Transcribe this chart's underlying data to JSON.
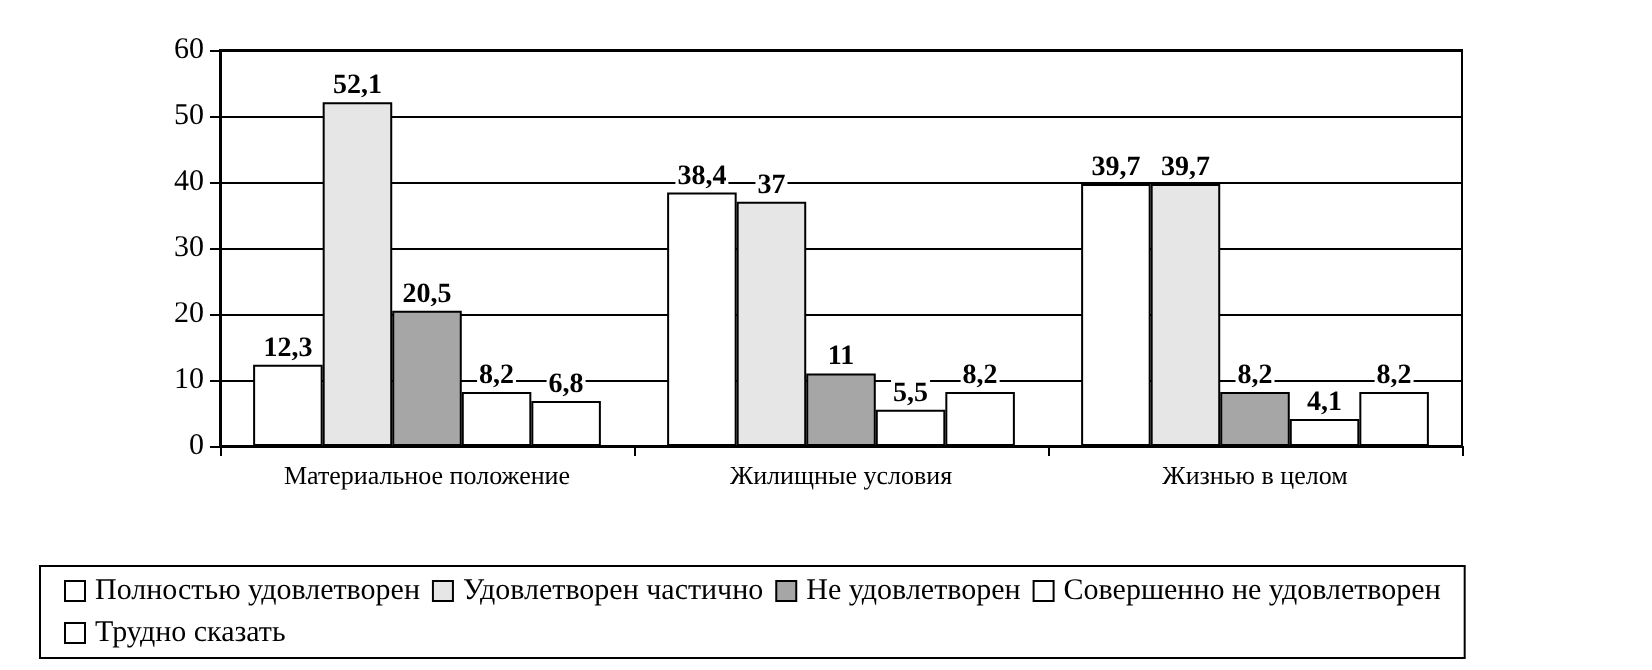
{
  "chart_data": {
    "type": "bar",
    "categories": [
      "Материальное положение",
      "Жилищные условия",
      "Жизнью в целом"
    ],
    "series": [
      {
        "name": "Полностью удовлетворен",
        "color": "#ffffff",
        "values": [
          12.3,
          38.4,
          39.7
        ],
        "value_labels": [
          "12,3",
          "38,4",
          "39,7"
        ]
      },
      {
        "name": "Удовлетворен частично",
        "color": "#e6e6e6",
        "values": [
          52.1,
          37,
          39.7
        ],
        "value_labels": [
          "52,1",
          "37",
          "39,7"
        ]
      },
      {
        "name": "Не удовлетворен",
        "color": "#a6a6a6",
        "values": [
          20.5,
          11,
          8.2
        ],
        "value_labels": [
          "20,5",
          "11",
          "8,2"
        ]
      },
      {
        "name": "Совершенно не удовлетворен",
        "color": "#ffffff",
        "values": [
          8.2,
          5.5,
          4.1
        ],
        "value_labels": [
          "8,2",
          "5,5",
          "4,1"
        ]
      },
      {
        "name": "Трудно сказать",
        "color": "#ffffff",
        "values": [
          6.8,
          8.2,
          8.2
        ],
        "value_labels": [
          "6,8",
          "8,2",
          "8,2"
        ]
      }
    ],
    "ylim": [
      0,
      60
    ],
    "yticks": [
      0,
      10,
      20,
      30,
      40,
      50,
      60
    ],
    "grid": "y",
    "legend": "bottom"
  }
}
